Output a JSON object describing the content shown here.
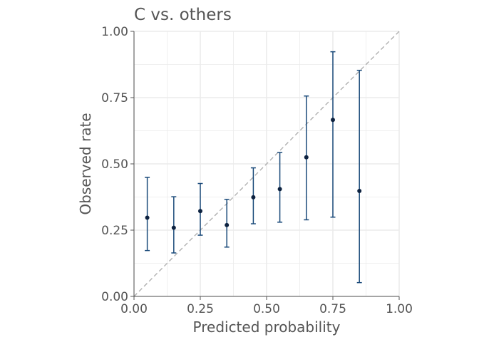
{
  "chart_data": {
    "type": "scatter",
    "title": "C vs. others",
    "xlabel": "Predicted probability",
    "ylabel": "Observed rate",
    "xlim": [
      0,
      1
    ],
    "ylim": [
      0,
      1
    ],
    "x_ticks": [
      "0.00",
      "0.25",
      "0.50",
      "0.75",
      "1.00"
    ],
    "y_ticks": [
      "0.00",
      "0.25",
      "0.50",
      "0.75",
      "1.00"
    ],
    "grid": true,
    "reference_line": {
      "from": [
        0,
        0
      ],
      "to": [
        1,
        1
      ],
      "style": "dashed"
    },
    "points": [
      {
        "x": 0.05,
        "y": 0.297,
        "lower": 0.173,
        "upper": 0.449
      },
      {
        "x": 0.15,
        "y": 0.259,
        "lower": 0.164,
        "upper": 0.376
      },
      {
        "x": 0.25,
        "y": 0.322,
        "lower": 0.231,
        "upper": 0.426
      },
      {
        "x": 0.35,
        "y": 0.269,
        "lower": 0.186,
        "upper": 0.366
      },
      {
        "x": 0.45,
        "y": 0.374,
        "lower": 0.274,
        "upper": 0.485
      },
      {
        "x": 0.55,
        "y": 0.405,
        "lower": 0.28,
        "upper": 0.543
      },
      {
        "x": 0.65,
        "y": 0.525,
        "lower": 0.289,
        "upper": 0.756
      },
      {
        "x": 0.75,
        "y": 0.666,
        "lower": 0.299,
        "upper": 0.923
      },
      {
        "x": 0.85,
        "y": 0.398,
        "lower": 0.052,
        "upper": 0.853
      }
    ],
    "colors": {
      "point": "#0d2240",
      "errorbar": "#1a4a7a",
      "reference": "#aaaaaa",
      "grid": "#ebebeb",
      "axis": "#555555"
    }
  }
}
